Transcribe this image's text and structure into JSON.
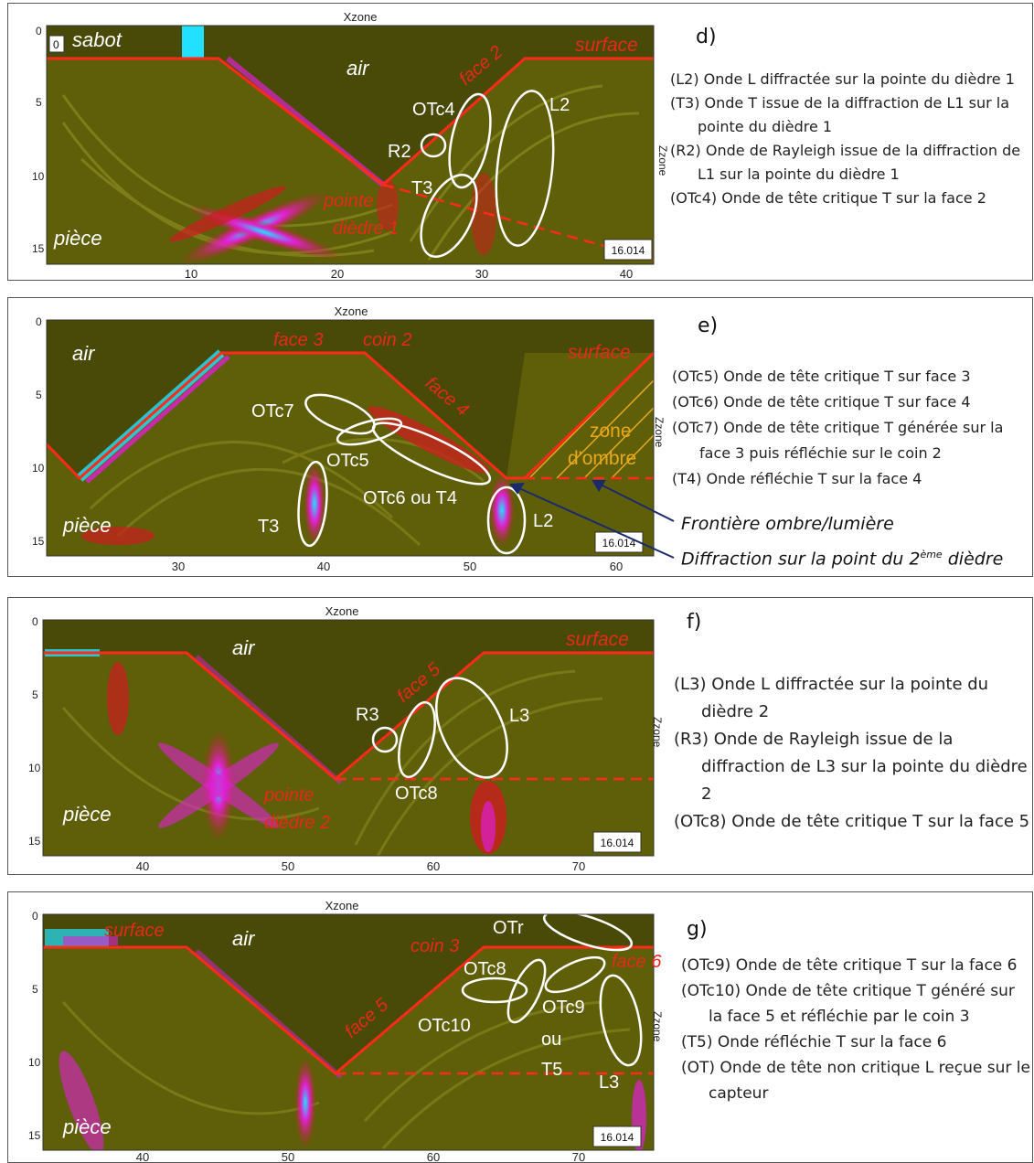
{
  "common": {
    "xaxis_title": "Xzone",
    "yaxis_title": "Zzone",
    "time_box": "16.014",
    "colors": {
      "background": "#5f5f0a",
      "air": "#4a4a08",
      "wave_red": "#cc1d1d",
      "wave_magenta": "#e020d0",
      "wave_cyan": "#22e0ff",
      "profile": "#ff2a1a",
      "ellipse": "#ffffff",
      "label_red": "#e8281a",
      "label_white": "#ffffff"
    }
  },
  "panels": [
    {
      "id": "d",
      "letter": "d)",
      "yticks": [
        "0",
        "5",
        "10",
        "15"
      ],
      "xticks": [
        "10",
        "20",
        "30",
        "40"
      ],
      "labels": {
        "zero_tick": "0",
        "sabot": "sabot",
        "air": "air",
        "surface": "surface",
        "face": "face 2",
        "pointe": "pointe",
        "diedre": "dièdre 1",
        "piece": "pièce",
        "OTc4": "OTc4",
        "L2": "L2",
        "R2": "R2",
        "T3": "T3"
      },
      "desc": [
        "(L2) Onde L diffractée sur la pointe du dièdre 1",
        "(T3) Onde T issue de la diffraction de L1 sur la pointe du dièdre 1",
        "(R2) Onde de Rayleigh issue de la diffraction de L1 sur la pointe du dièdre 1",
        "(OTc4) Onde de tête critique T sur la face 2"
      ]
    },
    {
      "id": "e",
      "letter": "e)",
      "yticks": [
        "0",
        "5",
        "10",
        "15"
      ],
      "xticks": [
        "30",
        "40",
        "50",
        "60"
      ],
      "labels": {
        "air": "air",
        "face3": "face 3",
        "coin2": "coin 2",
        "face4": "face 4",
        "surface": "surface",
        "zone": "zone",
        "ombre": "d'ombre",
        "piece": "pièce",
        "OTc7": "OTc7",
        "OTc5": "OTc5",
        "OTc6T4": "OTc6 ou T4",
        "T3": "T3",
        "L2": "L2"
      },
      "desc": [
        "(OTc5) Onde de tête critique T sur face 3",
        "(OTc6) Onde de tête critique T sur face 4",
        "(OTc7) Onde de tête critique T générée sur la face 3 puis réfléchie sur le coin 2",
        "(T4) Onde réfléchie T sur la face 4"
      ],
      "notes": {
        "frontiere": "Frontière ombre/lumière",
        "diffraction_pre": "Diffraction sur la point du 2",
        "diffraction_sup": "ème",
        "diffraction_post": " dièdre"
      }
    },
    {
      "id": "f",
      "letter": "f)",
      "yticks": [
        "0",
        "5",
        "10",
        "15"
      ],
      "xticks": [
        "40",
        "50",
        "60",
        "70"
      ],
      "labels": {
        "air": "air",
        "surface": "surface",
        "face5": "face 5",
        "pointe": "pointe",
        "diedre": "dièdre 2",
        "piece": "pièce",
        "R3": "R3",
        "L3": "L3",
        "OTc8": "OTc8"
      },
      "desc": [
        "(L3) Onde L diffractée sur la pointe du dièdre 2",
        "(R3) Onde de Rayleigh issue de la diffraction de L3 sur la pointe du dièdre 2",
        "(OTc8) Onde de tête critique T sur la face 5"
      ]
    },
    {
      "id": "g",
      "letter": "g)",
      "yticks": [
        "0",
        "5",
        "10",
        "15"
      ],
      "xticks": [
        "40",
        "50",
        "60",
        "70"
      ],
      "labels": {
        "surface": "surface",
        "air": "air",
        "coin3": "coin 3",
        "face6": "face 6",
        "face5": "face 5",
        "piece": "pièce",
        "OTr": "OTr",
        "OTc8": "OTc8",
        "OTc9": "OTc9",
        "ou": "ou",
        "T5": "T5",
        "OTc10": "OTc10",
        "L3": "L3"
      },
      "desc": [
        "(OTc9) Onde de tête critique T sur la face 6",
        "(OTc10) Onde de tête critique T généré sur la face 5 et réfléchie par le coin 3",
        "(T5) Onde réfléchie T sur la face 6",
        "(OT) Onde de tête non critique L reçue sur le capteur"
      ]
    }
  ]
}
